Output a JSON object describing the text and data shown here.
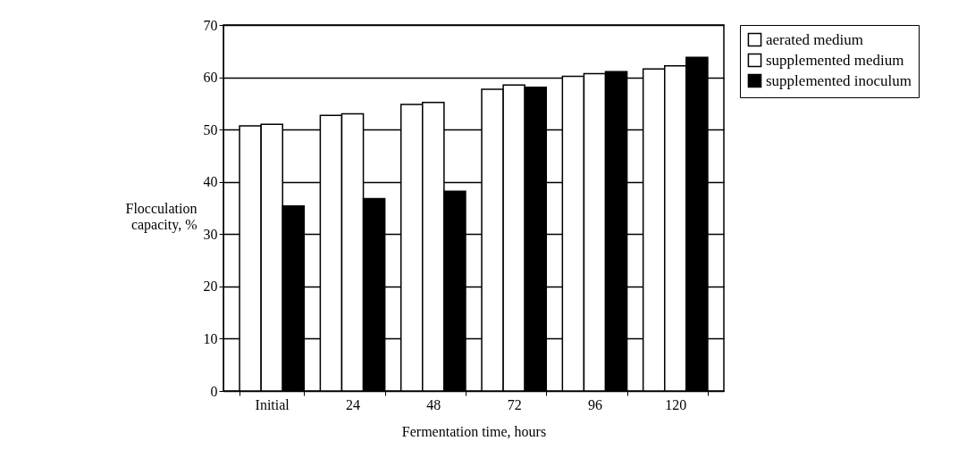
{
  "chart_data": {
    "type": "bar",
    "xlabel": "Fermentation time, hours",
    "ylabel": "Flocculation capacity, %",
    "categories": [
      "Initial",
      "24",
      "48",
      "72",
      "96",
      "120"
    ],
    "series": [
      {
        "name": "aerated medium",
        "color": "#ffffff",
        "values": [
          50.7,
          52.7,
          54.8,
          57.7,
          60.2,
          61.6
        ]
      },
      {
        "name": "supplemented medium",
        "color": "#ffffff",
        "values": [
          51,
          53,
          55.2,
          58.5,
          60.7,
          62.2
        ]
      },
      {
        "name": "supplemented inoculum",
        "color": "#000000",
        "values": [
          35.4,
          36.8,
          38.2,
          58.1,
          61.1,
          63.8
        ]
      }
    ],
    "ylim": [
      0,
      70
    ],
    "yticks": [
      0,
      10,
      20,
      30,
      40,
      50,
      60,
      70
    ],
    "grid": "y",
    "legend": "right"
  }
}
